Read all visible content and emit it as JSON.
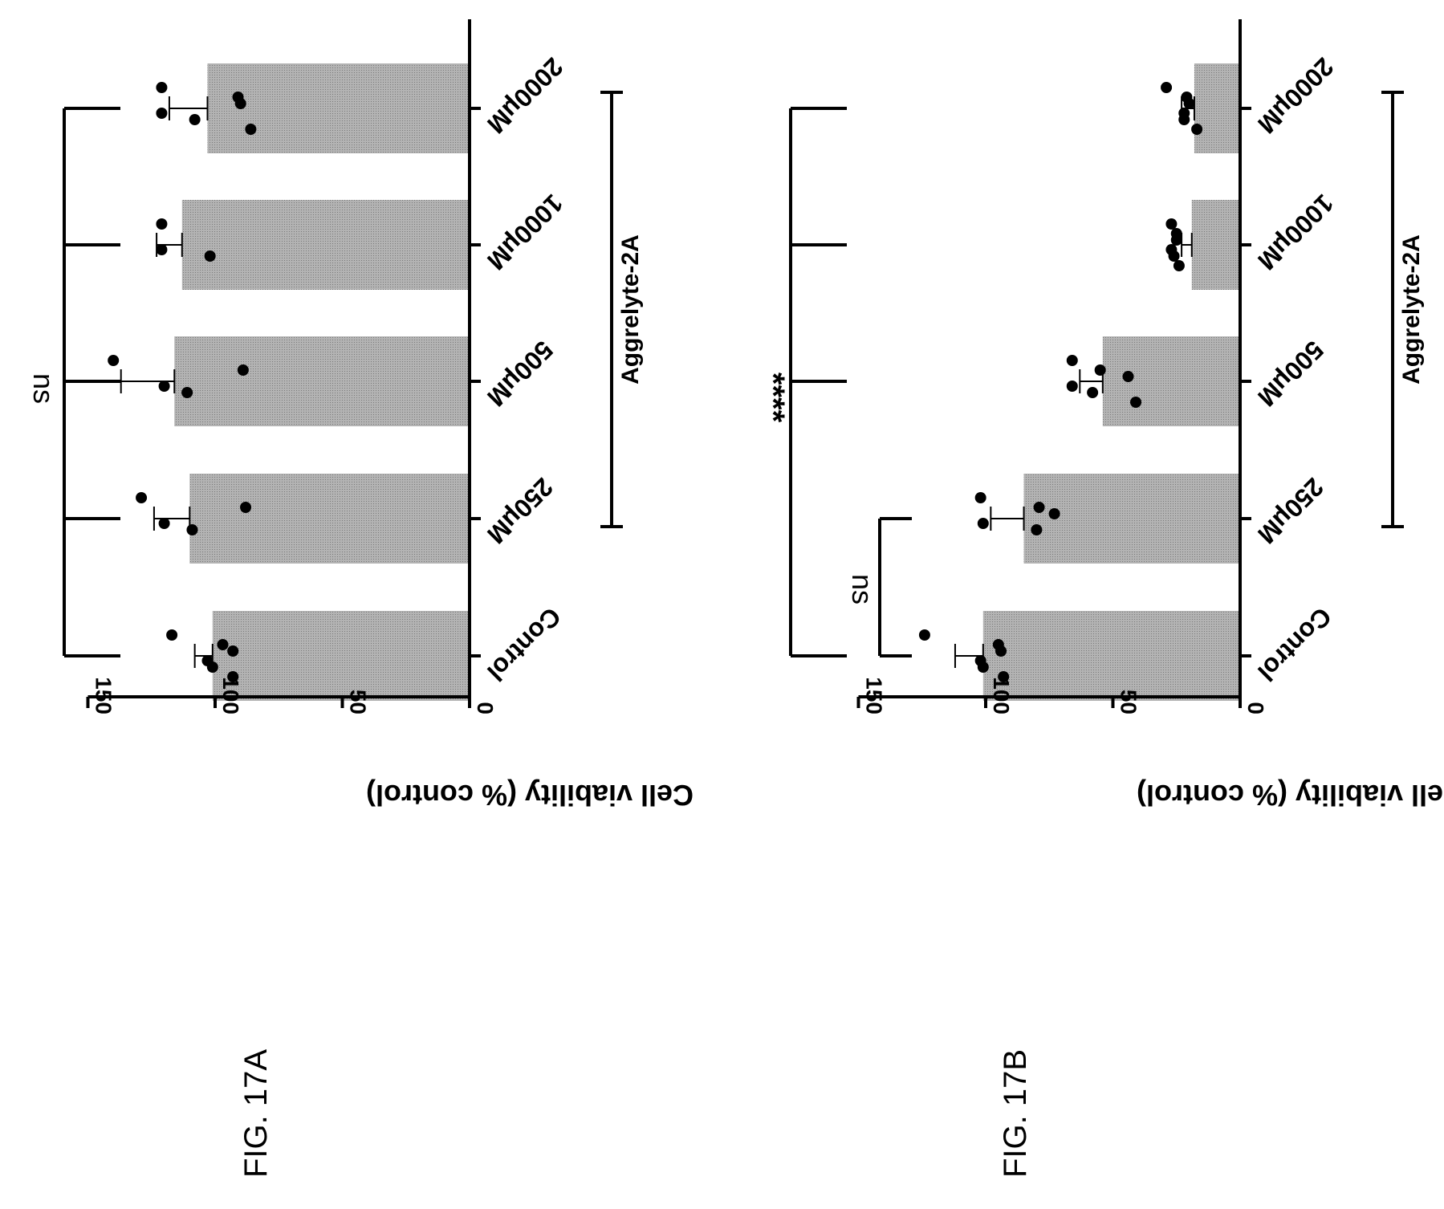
{
  "figures": [
    {
      "caption": "FIG. 17A"
    },
    {
      "caption": "FIG. 17B"
    }
  ],
  "colors": {
    "bar": "#aaaaaa",
    "ink": "#000000",
    "background": "#ffffff"
  },
  "chart_data": [
    {
      "type": "bar",
      "orientation": "rotated 90 degrees clockwise (bars extend leftward)",
      "ylabel": "Cell viability (% control)",
      "ylim": [
        0,
        150
      ],
      "yticks": [
        0,
        50,
        100,
        150
      ],
      "categories": [
        "Control",
        "250μM",
        "500μM",
        "1000μM",
        "2000μM"
      ],
      "values": [
        101,
        110,
        116,
        113,
        103
      ],
      "errors": [
        7,
        14,
        21,
        10,
        15
      ],
      "points": [
        [
          117,
          103,
          101,
          97,
          93,
          93
        ],
        [
          129,
          120,
          109,
          88
        ],
        [
          140,
          120,
          111,
          89
        ],
        [
          121,
          121,
          102
        ],
        [
          121,
          121,
          108,
          91,
          90,
          86
        ]
      ],
      "group_label": "Aggrelyte-2A",
      "group_categories": [
        1,
        4
      ],
      "significance": [
        {
          "text": "ns",
          "categories": [
            0,
            1,
            2,
            3,
            4
          ]
        }
      ]
    },
    {
      "type": "bar",
      "orientation": "rotated 90 degrees clockwise (bars extend leftward)",
      "ylabel": "Cell viability (% control)",
      "ylim": [
        0,
        150
      ],
      "yticks": [
        0,
        50,
        100,
        150
      ],
      "categories": [
        "Control",
        "250μM",
        "500μM",
        "1000μM",
        "2000μM"
      ],
      "values": [
        101,
        85,
        54,
        19,
        18
      ],
      "errors": [
        11,
        13,
        9,
        4,
        5
      ],
      "points": [
        [
          124,
          102,
          101,
          95,
          94,
          93
        ],
        [
          102,
          101,
          80,
          79,
          73
        ],
        [
          66,
          66,
          58,
          55,
          44,
          41
        ],
        [
          27,
          27,
          26,
          25,
          25,
          24
        ],
        [
          29,
          22,
          22,
          21,
          20,
          17
        ]
      ],
      "group_label": "Aggrelyte-2A",
      "group_categories": [
        1,
        4
      ],
      "significance": [
        {
          "text": "****",
          "categories": [
            0,
            2,
            3,
            4
          ]
        },
        {
          "text": "ns",
          "categories": [
            0,
            1
          ]
        }
      ]
    }
  ]
}
